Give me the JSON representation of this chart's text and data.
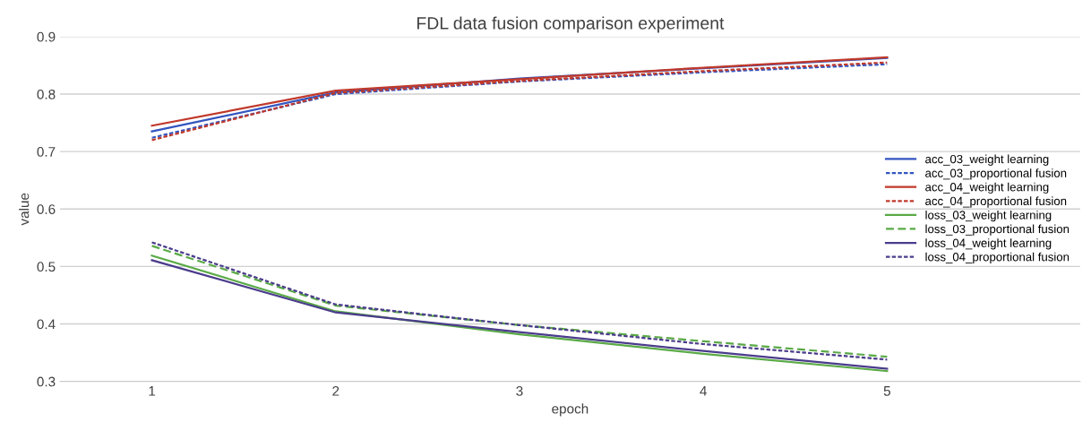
{
  "chart_data": {
    "type": "line",
    "title": "FDL data fusion comparison experiment",
    "xlabel": "epoch",
    "ylabel": "value",
    "categories": [
      "1",
      "2",
      "3",
      "4",
      "5"
    ],
    "ylim": [
      0.3,
      0.9
    ],
    "yticks": [
      0.3,
      0.4,
      0.5,
      0.6,
      0.7,
      0.8,
      0.9
    ],
    "grid": "y",
    "legend": "right",
    "marker": "none",
    "series": [
      {
        "name": "acc_03_weight learning",
        "color": "#3355c0",
        "line_style": "solid",
        "values": [
          0.735,
          0.803,
          0.827,
          0.845,
          0.863
        ]
      },
      {
        "name": "acc_03_proportional fusion",
        "color": "#3355c0",
        "line_style": "dotted",
        "values": [
          0.724,
          0.8,
          0.822,
          0.838,
          0.852
        ]
      },
      {
        "name": "acc_04_weight learning",
        "color": "#c0392b",
        "line_style": "solid",
        "values": [
          0.745,
          0.806,
          0.826,
          0.846,
          0.864
        ]
      },
      {
        "name": "acc_04_proportional fusion",
        "color": "#c0392b",
        "line_style": "dotted",
        "values": [
          0.72,
          0.802,
          0.823,
          0.84,
          0.855
        ]
      },
      {
        "name": "loss_03_weight learning",
        "color": "#5aaa46",
        "line_style": "solid",
        "values": [
          0.519,
          0.422,
          0.382,
          0.348,
          0.318
        ]
      },
      {
        "name": "loss_03_proportional fusion",
        "color": "#5aaa46",
        "line_style": "dashed",
        "values": [
          0.536,
          0.432,
          0.398,
          0.37,
          0.343
        ]
      },
      {
        "name": "loss_04_weight learning",
        "color": "#4b3c8c",
        "line_style": "solid",
        "values": [
          0.511,
          0.42,
          0.386,
          0.353,
          0.322
        ]
      },
      {
        "name": "loss_04_proportional fusion",
        "color": "#4b3c8c",
        "line_style": "dotted",
        "values": [
          0.542,
          0.434,
          0.398,
          0.365,
          0.338
        ]
      }
    ]
  }
}
